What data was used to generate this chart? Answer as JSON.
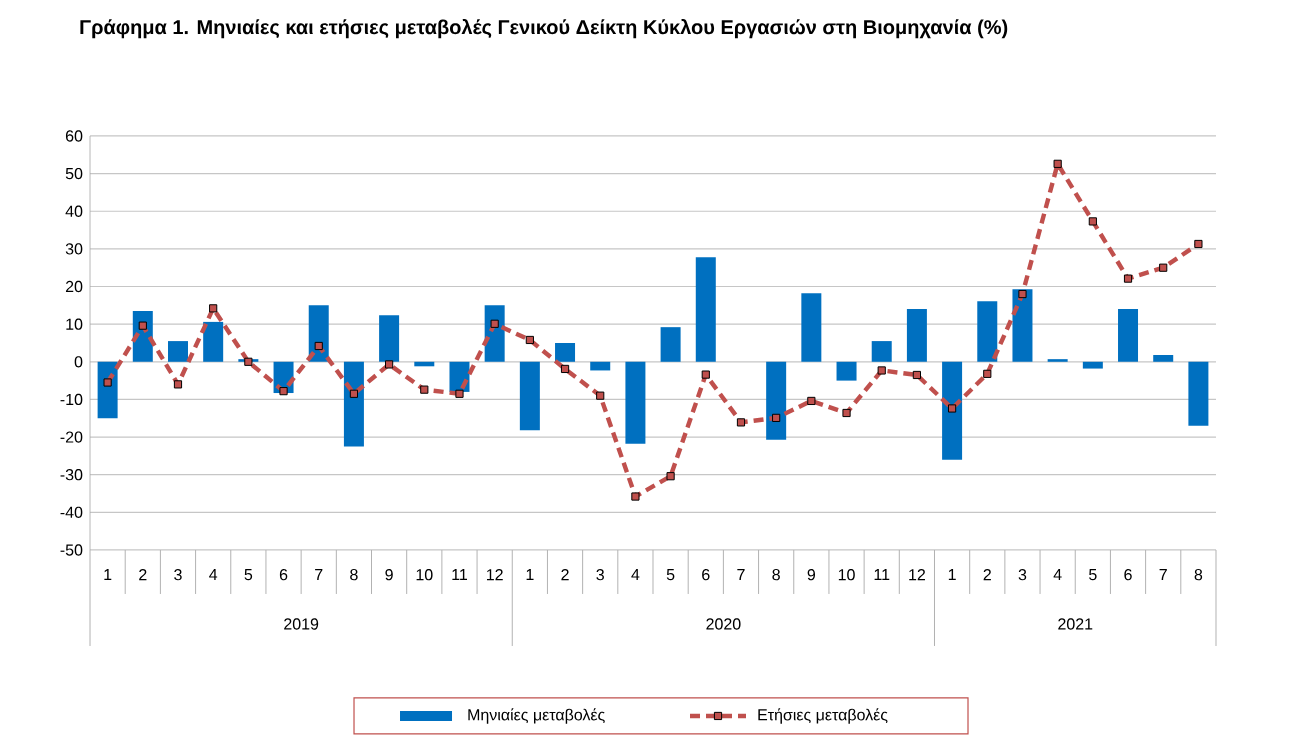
{
  "chart_data": {
    "type": "bar",
    "title": "Γράφημα 1. Μηνιαίες και ετήσιες μεταβολές  Γενικού Δείκτη Κύκλου Εργασιών στη Βιομηχανία (%)",
    "categories": [
      "1",
      "2",
      "3",
      "4",
      "5",
      "6",
      "7",
      "8",
      "9",
      "10",
      "11",
      "12",
      "1",
      "2",
      "3",
      "4",
      "5",
      "6",
      "7",
      "8",
      "9",
      "10",
      "11",
      "12",
      "1",
      "2",
      "3",
      "4",
      "5",
      "6",
      "7",
      "8"
    ],
    "series": [
      {
        "name": "Μηνιαίες μεταβολές",
        "color": "#0070c0",
        "values": [
          -15,
          13.5,
          5.5,
          10.6,
          0.7,
          -8.3,
          15,
          -22.5,
          12.4,
          -1.2,
          -8,
          15,
          -18.2,
          5,
          -2.3,
          -21.8,
          9.2,
          27.8,
          0,
          -20.7,
          18.2,
          -5,
          5.5,
          14,
          -26,
          16.1,
          19.3,
          0.7,
          -1.8,
          14,
          1.8,
          -17
        ]
      },
      {
        "name": "Ετήσιες μεταβολές",
        "type": "line",
        "color": "#c0504d",
        "marker": "square",
        "line_style": "dashed",
        "values": [
          -5.5,
          9.6,
          -6,
          14.2,
          0,
          -7.8,
          4.2,
          -8.5,
          -0.7,
          -7.4,
          -8.5,
          10.1,
          5.8,
          -1.9,
          -9,
          -35.8,
          -30.4,
          -3.4,
          -16.1,
          -14.9,
          -10.4,
          -13.6,
          -2.3,
          -3.5,
          -12.4,
          -3.2,
          18,
          52.6,
          37.3,
          22.1,
          25,
          31.3
        ]
      }
    ],
    "ylim": [
      -50,
      60
    ],
    "yticks": [
      -50,
      -40,
      -30,
      -20,
      -10,
      0,
      10,
      20,
      30,
      40,
      50,
      60
    ],
    "grid": "y",
    "legend": "bottom",
    "annotations": [
      "2019",
      "2020",
      "2021"
    ]
  }
}
